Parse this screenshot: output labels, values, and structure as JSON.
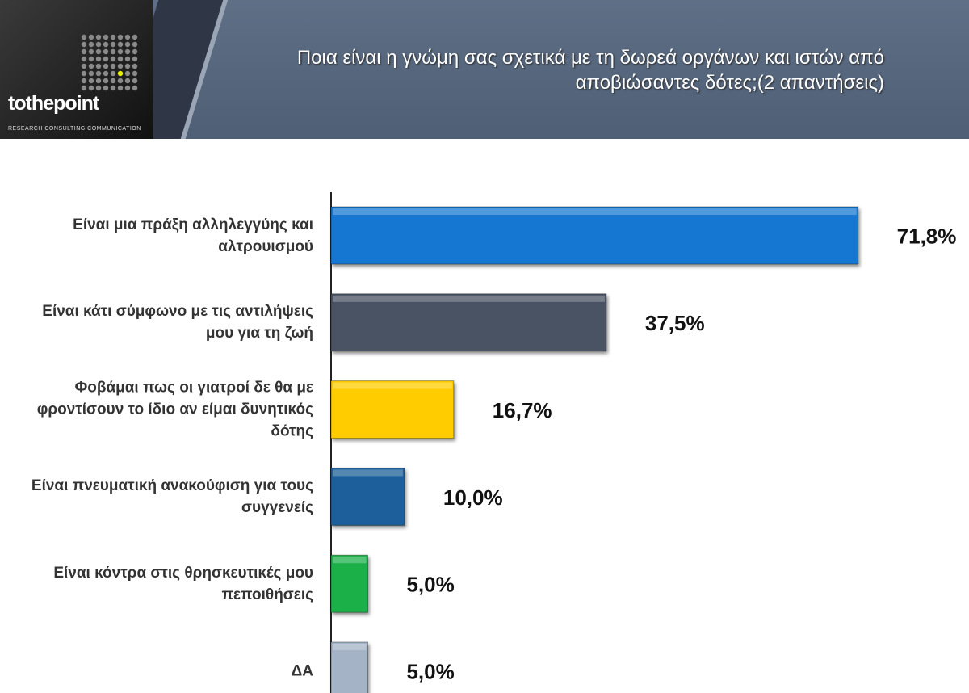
{
  "logo": {
    "name": "tothepoint",
    "tagline": "RESEARCH CONSULTING COMMUNICATION"
  },
  "chart_data": {
    "type": "bar",
    "orientation": "horizontal",
    "title": "Ποια είναι η γνώμη σας σχετικά με τη δωρεά οργάνων και ιστών από αποβιώσαντες δότες;(2 απαντήσεις)",
    "categories": [
      "Είναι μια πράξη αλληλεγγύης και αλτρουισμού",
      "Είναι κάτι σύμφωνο με τις αντιλήψεις μου για τη ζωή",
      "Φοβάμαι πως οι γιατροί δε θα με φροντίσουν το ίδιο αν είμαι δυνητικός δότης",
      "Είναι πνευματική ανακούφιση για τους συγγενείς",
      "Είναι κόντρα στις θρησκευτικές μου πεποιθήσεις",
      "ΔΑ"
    ],
    "values": [
      71.8,
      37.5,
      16.7,
      10.0,
      5.0,
      5.0
    ],
    "value_labels": [
      "71,8%",
      "37,5%",
      "16,7%",
      "10,0%",
      "5,0%",
      "5,0%"
    ],
    "colors": [
      "#1877d2",
      "#4a5364",
      "#ffcc00",
      "#1c5f9a",
      "#1fb04a",
      "#a5b3c6"
    ]
  }
}
